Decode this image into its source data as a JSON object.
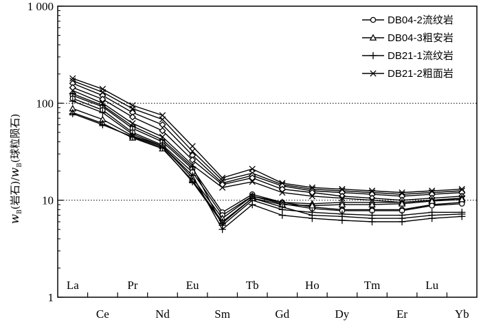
{
  "chart_data": {
    "type": "line",
    "x_categories_top": [
      "La",
      "Pr",
      "Eu",
      "Tb",
      "Ho",
      "Tm",
      "Lu"
    ],
    "x_categories_bottom": [
      "Ce",
      "Nd",
      "Sm",
      "Gd",
      "Dy",
      "Er",
      "Yb"
    ],
    "x": [
      "La",
      "Ce",
      "Pr",
      "Nd",
      "Sm",
      "Eu",
      "Gd",
      "Tb",
      "Dy",
      "Ho",
      "Er",
      "Tm",
      "Yb",
      "Lu"
    ],
    "y_scale": "log",
    "ylim": [
      1,
      1000
    ],
    "y_ticks": [
      "1",
      "10",
      "100",
      "1 000"
    ],
    "y_gridlines": [
      10,
      100
    ],
    "ylabel": "w_B(岩石)/w_B(球粒陨石)",
    "ylabel_parts": {
      "w1": "w",
      "sub1": "B",
      "mid": "(岩石)/",
      "w2": "w",
      "sub2": "B",
      "end": "(球粒陨石)"
    },
    "legend_position": "top-right",
    "legend": [
      {
        "marker": "circle",
        "label": "DB04-2流纹岩"
      },
      {
        "marker": "triangle",
        "label": "DB04-3粗安岩"
      },
      {
        "marker": "plus",
        "label": "DB21-1流纹岩"
      },
      {
        "marker": "x",
        "label": "DB21-2粗面岩"
      }
    ],
    "series": [
      {
        "marker": "x",
        "values": [
          180,
          140,
          95,
          75,
          36,
          17,
          21,
          15,
          13.5,
          13,
          12.5,
          12,
          12.5,
          13
        ]
      },
      {
        "marker": "x",
        "values": [
          170,
          130,
          88,
          68,
          32,
          16,
          19,
          14.5,
          13,
          12.5,
          12,
          11.5,
          12,
          12.5
        ]
      },
      {
        "marker": "diamond",
        "values": [
          160,
          120,
          80,
          60,
          29,
          15,
          18,
          14,
          12.5,
          12,
          11.5,
          11,
          11.5,
          12
        ]
      },
      {
        "marker": "diamond",
        "values": [
          145,
          110,
          72,
          52,
          26,
          14.5,
          17,
          13,
          12,
          11,
          10.5,
          10,
          10.5,
          11
        ]
      },
      {
        "marker": "x",
        "values": [
          135,
          100,
          62,
          45,
          23,
          13.5,
          15.5,
          12,
          11,
          10.5,
          10,
          9.5,
          10,
          10.5
        ]
      },
      {
        "marker": "circle",
        "values": [
          120,
          92,
          55,
          40,
          21,
          7.5,
          11.5,
          9.5,
          8.5,
          8,
          8,
          8,
          9,
          9.5
        ]
      },
      {
        "marker": "circle",
        "values": [
          112,
          85,
          50,
          37,
          19.5,
          7,
          11,
          9.2,
          8.2,
          7.8,
          7.8,
          7.8,
          8.8,
          9.2
        ]
      },
      {
        "marker": "plus",
        "values": [
          125,
          95,
          58,
          42,
          22,
          5.5,
          10,
          8,
          7.5,
          7.2,
          7,
          7,
          7.5,
          7.5
        ]
      },
      {
        "marker": "plus",
        "values": [
          105,
          80,
          48,
          36,
          18,
          5,
          9,
          7,
          6.5,
          6.2,
          6,
          6,
          6.5,
          6.8
        ]
      },
      {
        "marker": "triangle",
        "values": [
          88,
          68,
          46,
          36,
          17,
          6.5,
          11,
          9.5,
          9.2,
          9.5,
          9.5,
          9.5,
          10,
          10.5
        ]
      },
      {
        "marker": "triangle",
        "values": [
          80,
          62,
          44,
          34,
          16,
          6,
          10.5,
          9,
          8.8,
          9,
          9,
          9.2,
          9.8,
          10.2
        ]
      },
      {
        "marker": "plus",
        "values": [
          78,
          60,
          45,
          35,
          15.5,
          5.8,
          10.5,
          8.5,
          7,
          6.8,
          6.5,
          6.5,
          7,
          7.2
        ]
      }
    ]
  }
}
